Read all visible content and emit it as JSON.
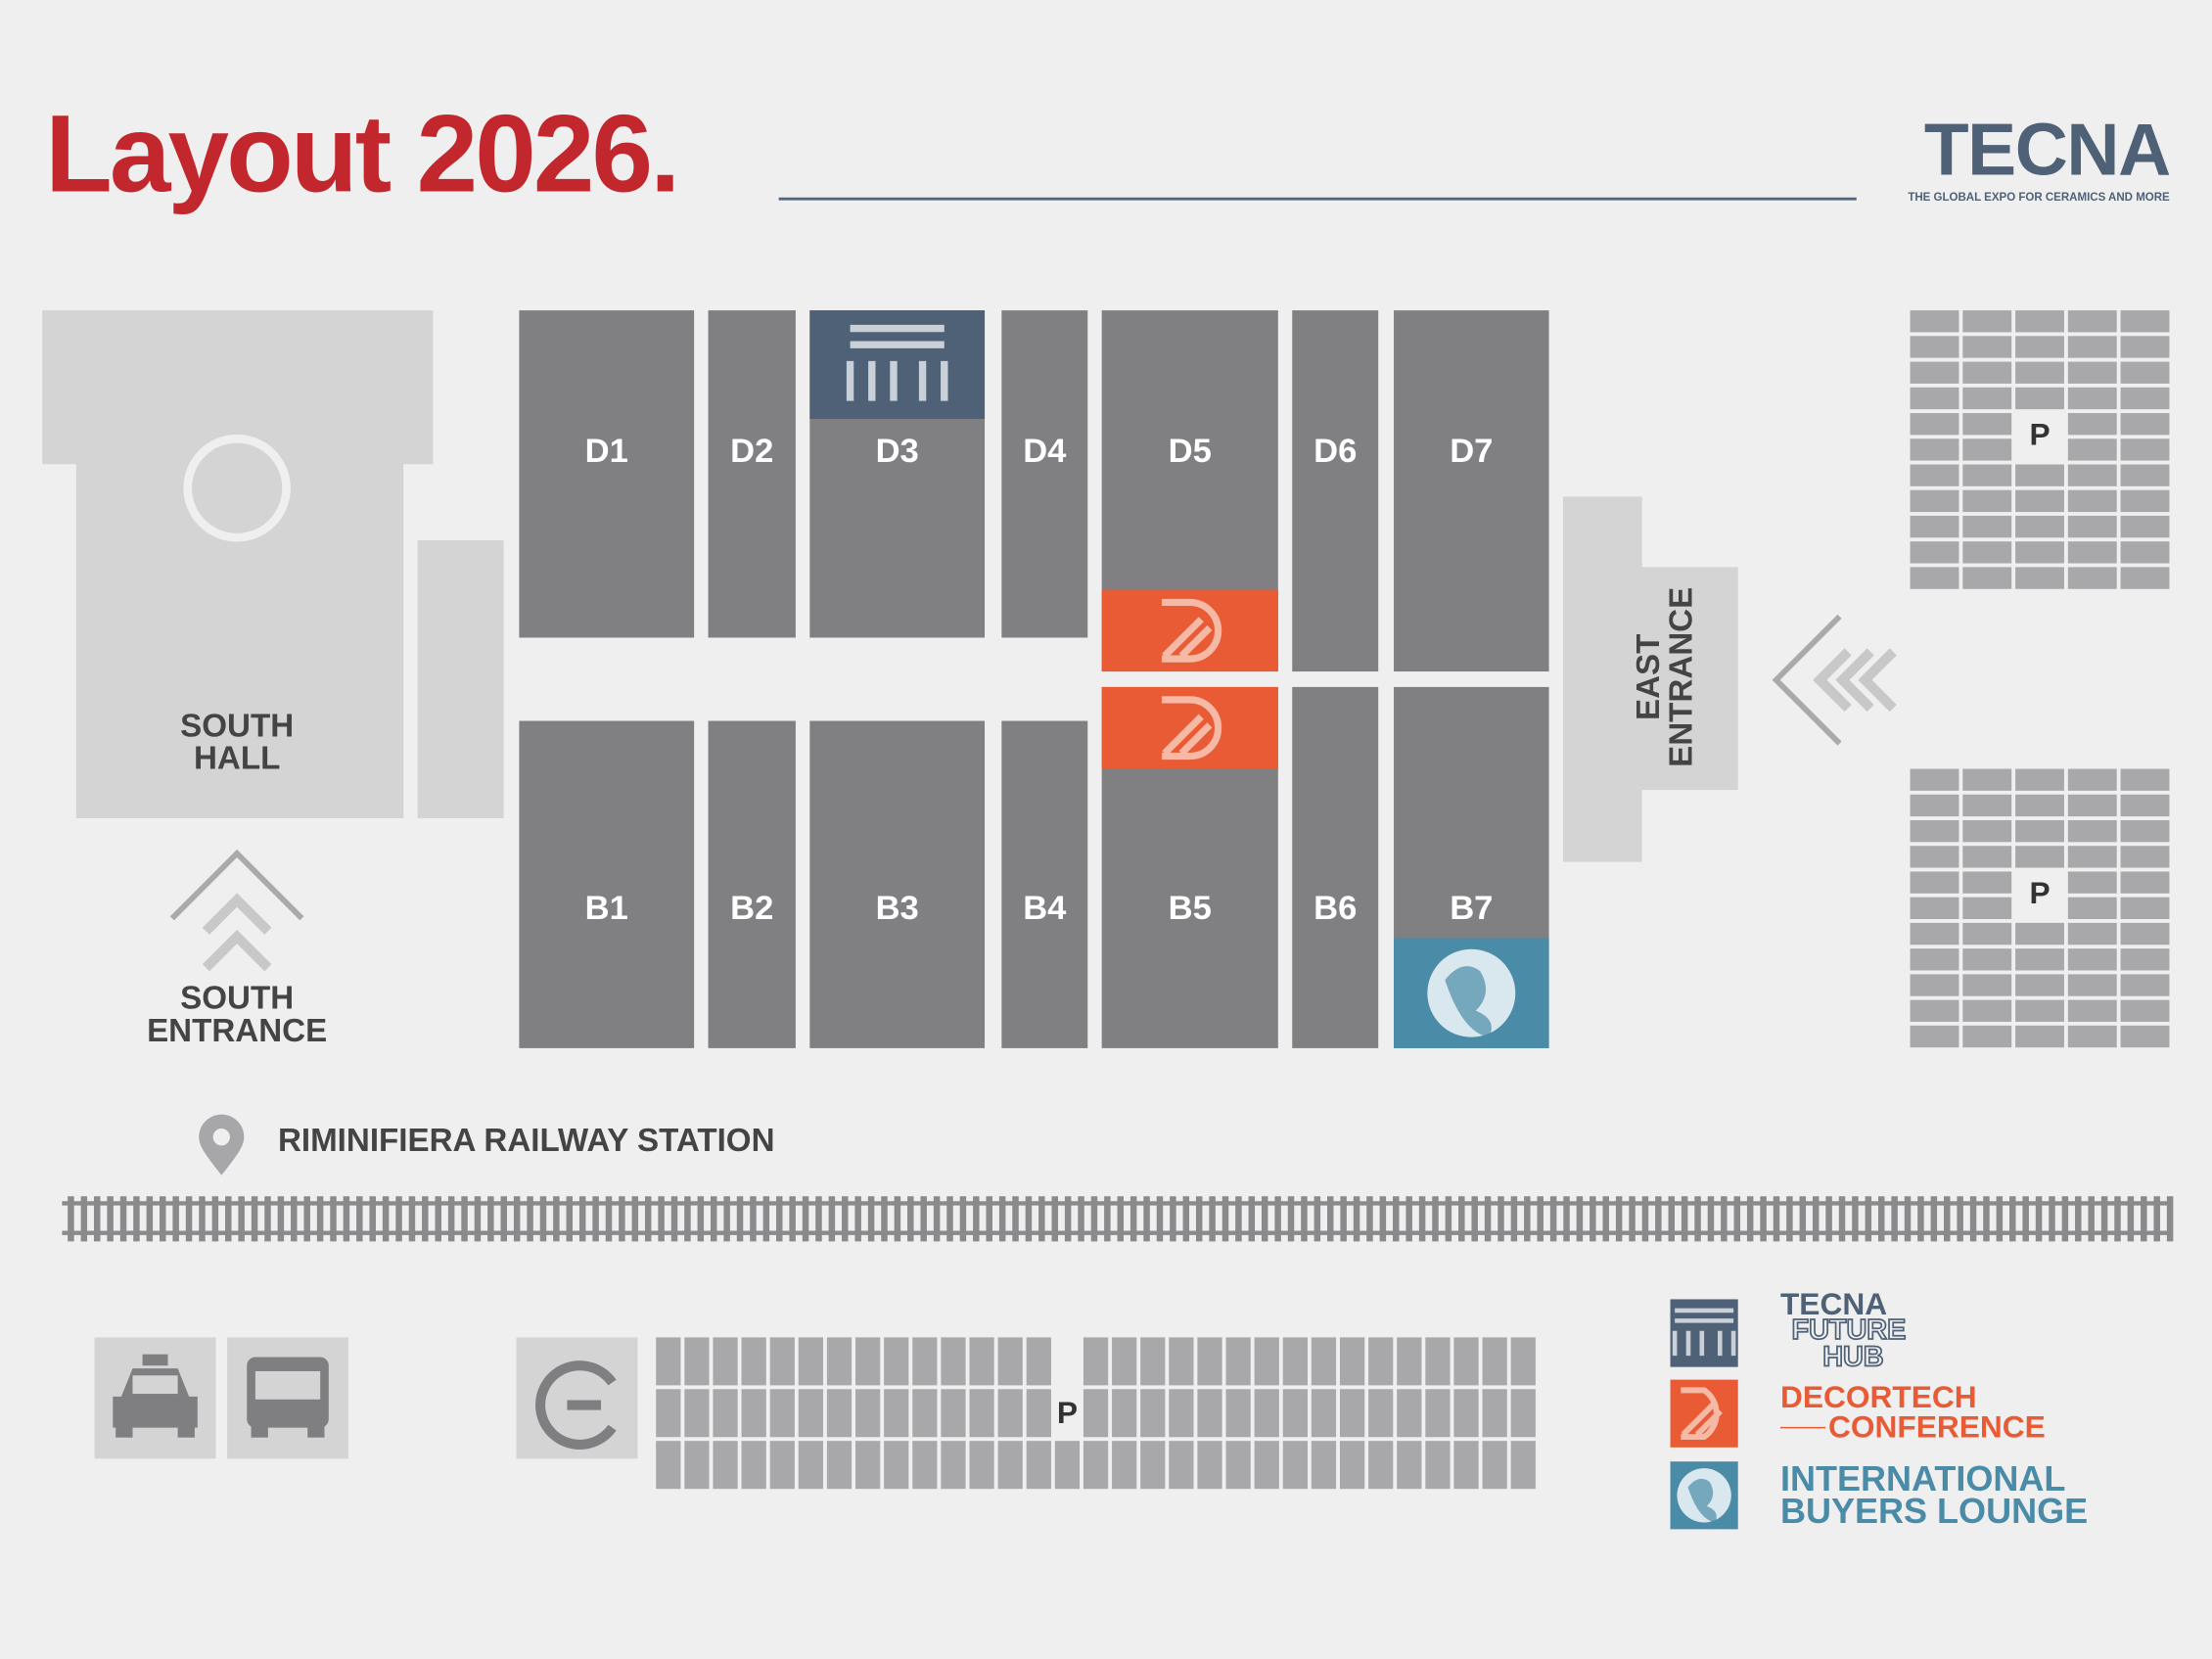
{
  "header": {
    "title": "Layout 2026.",
    "logo": "TECNA",
    "tagline": "THE GLOBAL EXPO FOR CERAMICS AND MORE"
  },
  "halls": [
    {
      "label": "D1"
    },
    {
      "label": "D2"
    },
    {
      "label": "D3"
    },
    {
      "label": "D4"
    },
    {
      "label": "D5"
    },
    {
      "label": "D6"
    },
    {
      "label": "D7"
    },
    {
      "label": "B1"
    },
    {
      "label": "B2"
    },
    {
      "label": "B3"
    },
    {
      "label": "B4"
    },
    {
      "label": "B5"
    },
    {
      "label": "B6"
    },
    {
      "label": "B7"
    }
  ],
  "south_hall": [
    "SOUTH",
    "HALL"
  ],
  "south_entrance": [
    "SOUTH",
    "ENTRANCE"
  ],
  "east_entrance": [
    "EAST",
    "ENTRANCE"
  ],
  "station": "RIMINIFIERA RAILWAY STATION",
  "parking": [
    "P",
    "P",
    "P"
  ],
  "legend": [
    {
      "lines": [
        "TECNA",
        "FUTURE",
        "HUB"
      ]
    },
    {
      "lines": [
        "DECORTECH",
        "CONFERENCE"
      ]
    },
    {
      "lines": [
        "INTERNATIONAL",
        "BUYERS LOUNGE"
      ]
    }
  ]
}
